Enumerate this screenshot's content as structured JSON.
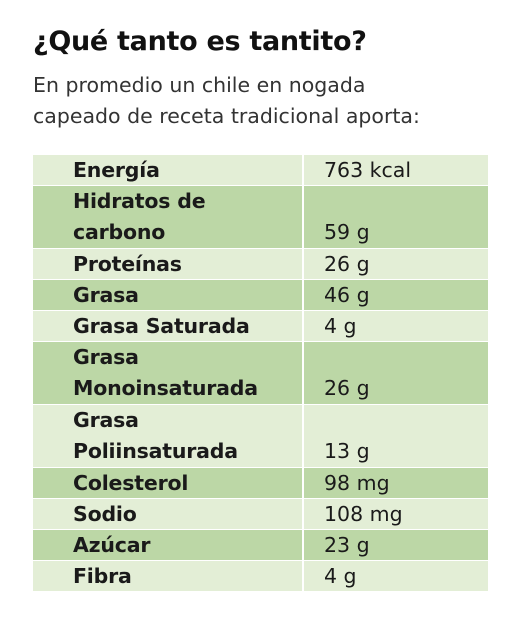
{
  "title": "¿Qué tanto es tantito?",
  "subtitle": {
    "line1": "En promedio un chile en nogada",
    "line2": "capeado de receta tradicional aporta:"
  },
  "rows": [
    {
      "name": [
        "Energía"
      ],
      "value": "763 kcal"
    },
    {
      "name": [
        "Hidratos de",
        "carbono"
      ],
      "value": "59 g"
    },
    {
      "name": [
        "Proteínas"
      ],
      "value": "26 g"
    },
    {
      "name": [
        "Grasa"
      ],
      "value": "46 g"
    },
    {
      "name": [
        "Grasa Saturada"
      ],
      "value": "4 g"
    },
    {
      "name": [
        "Grasa",
        "Monoinsaturada"
      ],
      "value": "26 g"
    },
    {
      "name": [
        "Grasa",
        "Poliinsaturada"
      ],
      "value": "13 g"
    },
    {
      "name": [
        "Colesterol"
      ],
      "value": "98 mg"
    },
    {
      "name": [
        "Sodio"
      ],
      "value": "108 mg"
    },
    {
      "name": [
        "Azúcar"
      ],
      "value": "23 g"
    },
    {
      "name": [
        "Fibra"
      ],
      "value": "4 g"
    }
  ],
  "colors": {
    "row_light": "#e3eed6",
    "row_dark": "#bcd7a6"
  }
}
